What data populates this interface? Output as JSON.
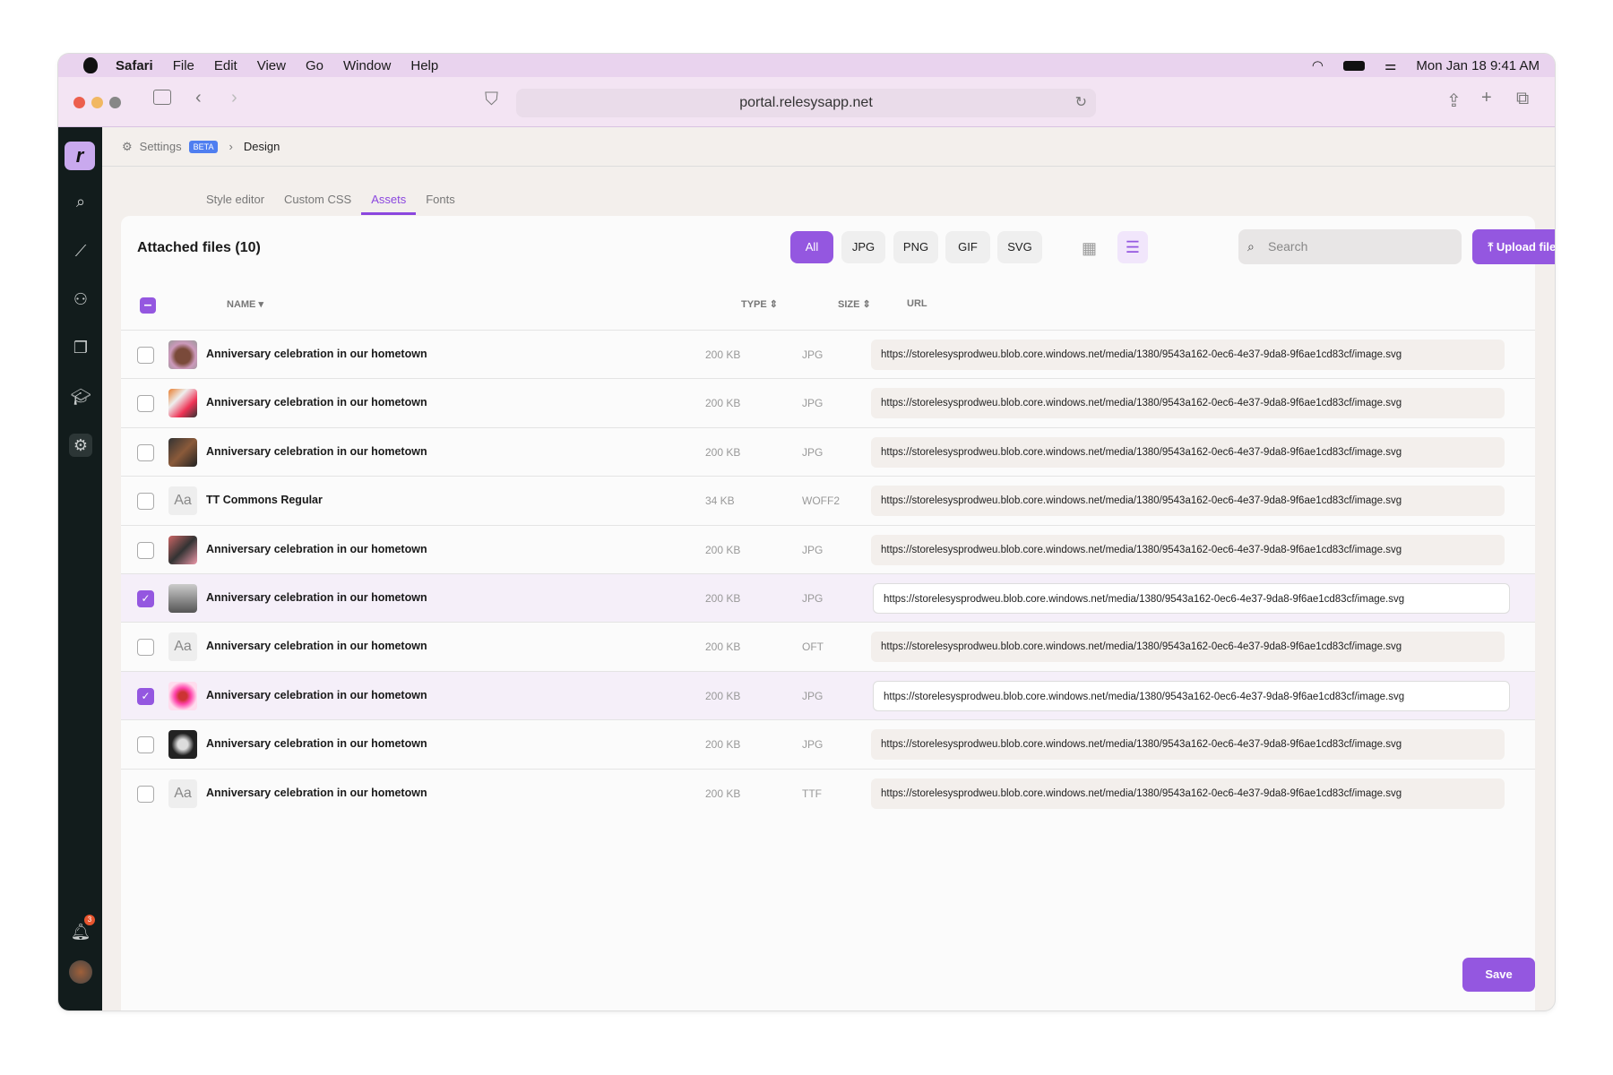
{
  "menubar": {
    "app": "Safari",
    "items": [
      "File",
      "Edit",
      "View",
      "Go",
      "Window",
      "Help"
    ],
    "datetime": "Mon Jan 18  9:41 AM"
  },
  "browser": {
    "url": "portal.relesysapp.net"
  },
  "sidebar": {
    "logo": "r",
    "notification_count": "3"
  },
  "breadcrumb": {
    "settings": "Settings",
    "badge": "BETA",
    "current": "Design"
  },
  "tabs": [
    "Style editor",
    "Custom CSS",
    "Assets",
    "Fonts"
  ],
  "active_tab": "Assets",
  "main": {
    "title": "Attached files (10)",
    "filters": [
      "All",
      "JPG",
      "PNG",
      "GIF",
      "SVG"
    ],
    "active_filter": "All",
    "search_placeholder": "Search",
    "upload_label": "Upload files",
    "save_label": "Save"
  },
  "columns": {
    "name": "NAME",
    "type": "TYPE",
    "size": "SIZE",
    "url": "URL"
  },
  "colors": {
    "accent": "#9457e0",
    "sidebar": "#121c1c",
    "selected_row": "#f5eff9"
  },
  "files": [
    {
      "name": "Anniversary celebration in our hometown",
      "size": "200 KB",
      "type": "JPG",
      "url": "https://storelesysprodweu.blob.core.windows.net/media/1380/9543a162-0ec6-4e37-9da8-9f6ae1cd83cf/image.svg",
      "checked": false,
      "thumb": "image"
    },
    {
      "name": "Anniversary celebration in our hometown",
      "size": "200 KB",
      "type": "JPG",
      "url": "https://storelesysprodweu.blob.core.windows.net/media/1380/9543a162-0ec6-4e37-9da8-9f6ae1cd83cf/image.svg",
      "checked": false,
      "thumb": "image"
    },
    {
      "name": "Anniversary celebration in our hometown",
      "size": "200 KB",
      "type": "JPG",
      "url": "https://storelesysprodweu.blob.core.windows.net/media/1380/9543a162-0ec6-4e37-9da8-9f6ae1cd83cf/image.svg",
      "checked": false,
      "thumb": "image"
    },
    {
      "name": "TT Commons Regular",
      "size": "34 KB",
      "type": "WOFF2",
      "url": "https://storelesysprodweu.blob.core.windows.net/media/1380/9543a162-0ec6-4e37-9da8-9f6ae1cd83cf/image.svg",
      "checked": false,
      "thumb": "font"
    },
    {
      "name": "Anniversary celebration in our hometown",
      "size": "200 KB",
      "type": "JPG",
      "url": "https://storelesysprodweu.blob.core.windows.net/media/1380/9543a162-0ec6-4e37-9da8-9f6ae1cd83cf/image.svg",
      "checked": false,
      "thumb": "image"
    },
    {
      "name": "Anniversary celebration in our hometown",
      "size": "200 KB",
      "type": "JPG",
      "url": "https://storelesysprodweu.blob.core.windows.net/media/1380/9543a162-0ec6-4e37-9da8-9f6ae1cd83cf/image.svg",
      "checked": true,
      "thumb": "image"
    },
    {
      "name": "Anniversary celebration in our hometown",
      "size": "200 KB",
      "type": "OFT",
      "url": "https://storelesysprodweu.blob.core.windows.net/media/1380/9543a162-0ec6-4e37-9da8-9f6ae1cd83cf/image.svg",
      "checked": false,
      "thumb": "font"
    },
    {
      "name": "Anniversary celebration in our hometown",
      "size": "200 KB",
      "type": "JPG",
      "url": "https://storelesysprodweu.blob.core.windows.net/media/1380/9543a162-0ec6-4e37-9da8-9f6ae1cd83cf/image.svg",
      "checked": true,
      "thumb": "image"
    },
    {
      "name": "Anniversary celebration in our hometown",
      "size": "200 KB",
      "type": "JPG",
      "url": "https://storelesysprodweu.blob.core.windows.net/media/1380/9543a162-0ec6-4e37-9da8-9f6ae1cd83cf/image.svg",
      "checked": false,
      "thumb": "image"
    },
    {
      "name": "Anniversary celebration in our hometown",
      "size": "200 KB",
      "type": "TTF",
      "url": "https://storelesysprodweu.blob.core.windows.net/media/1380/9543a162-0ec6-4e37-9da8-9f6ae1cd83cf/image.svg",
      "checked": false,
      "thumb": "font"
    }
  ]
}
